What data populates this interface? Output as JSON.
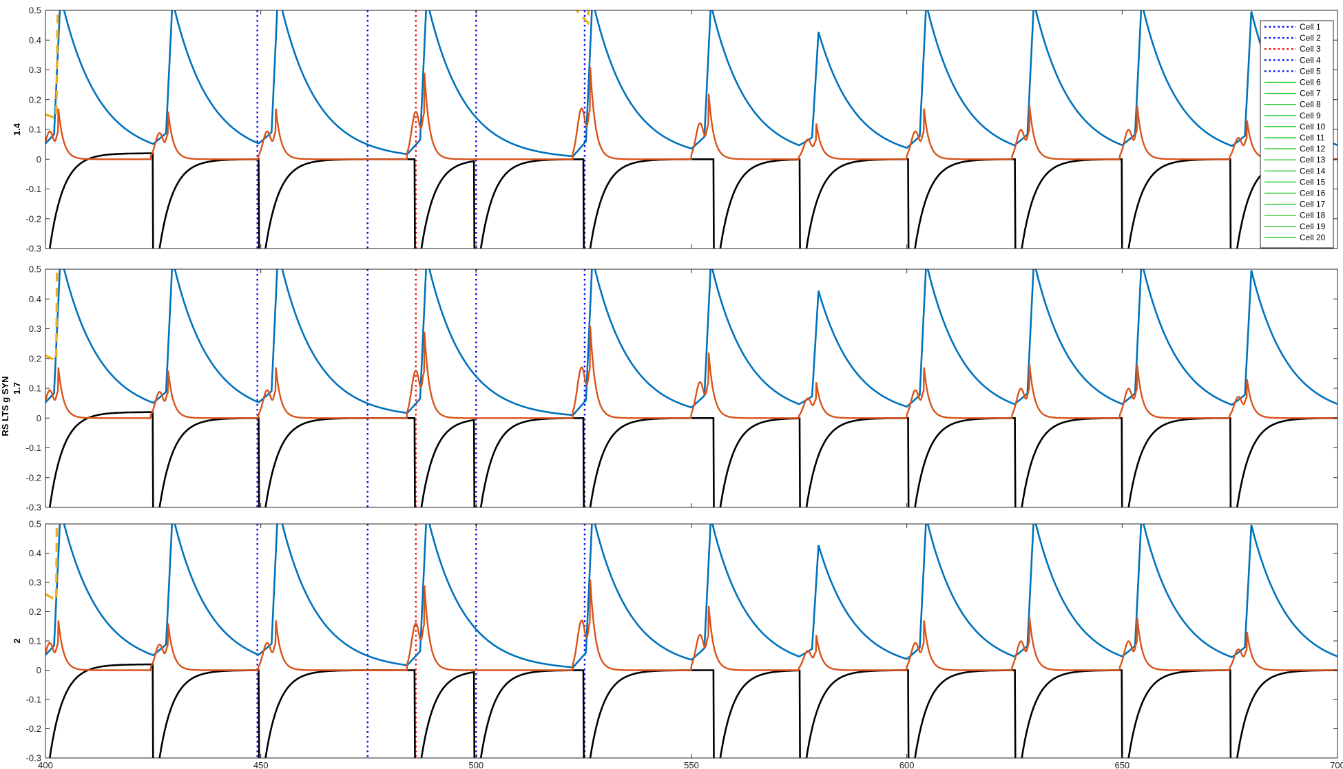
{
  "figure": {
    "ylabel_main": "RS LTS g SYN",
    "panel_labels": [
      "1.4",
      "1.7",
      "2"
    ]
  },
  "legend": {
    "placement": "top-right",
    "entries": [
      {
        "label": "Cell 1",
        "color": "#0000ff",
        "style": "dotted"
      },
      {
        "label": "Cell 2",
        "color": "#0000ff",
        "style": "dotted"
      },
      {
        "label": "Cell 3",
        "color": "#ff0000",
        "style": "dotted"
      },
      {
        "label": "Cell 4",
        "color": "#0000ff",
        "style": "dotted"
      },
      {
        "label": "Cell 5",
        "color": "#0000ff",
        "style": "dotted"
      },
      {
        "label": "Cell 6",
        "color": "#00c000",
        "style": "solid"
      },
      {
        "label": "Cell 7",
        "color": "#00c000",
        "style": "solid"
      },
      {
        "label": "Cell 8",
        "color": "#00c000",
        "style": "solid"
      },
      {
        "label": "Cell 9",
        "color": "#00c000",
        "style": "solid"
      },
      {
        "label": "Cell 10",
        "color": "#00c000",
        "style": "solid"
      },
      {
        "label": "Cell 11",
        "color": "#00c000",
        "style": "solid"
      },
      {
        "label": "Cell 12",
        "color": "#00c000",
        "style": "solid"
      },
      {
        "label": "Cell 13",
        "color": "#00c000",
        "style": "solid"
      },
      {
        "label": "Cell 14",
        "color": "#00c000",
        "style": "solid"
      },
      {
        "label": "Cell 15",
        "color": "#00c000",
        "style": "solid"
      },
      {
        "label": "Cell 16",
        "color": "#00c000",
        "style": "solid"
      },
      {
        "label": "Cell 17",
        "color": "#00c000",
        "style": "solid"
      },
      {
        "label": "Cell 18",
        "color": "#00c000",
        "style": "solid"
      },
      {
        "label": "Cell 19",
        "color": "#00c000",
        "style": "solid"
      },
      {
        "label": "Cell 20",
        "color": "#00c000",
        "style": "solid"
      }
    ]
  },
  "chart_data": {
    "type": "line",
    "panels": 3,
    "xlim": [
      400,
      700
    ],
    "ylim": [
      -0.3,
      0.5
    ],
    "xticks": [
      400,
      450,
      500,
      550,
      600,
      650,
      700
    ],
    "yticks": [
      -0.3,
      -0.2,
      -0.1,
      0,
      0.1,
      0.2,
      0.3,
      0.4,
      0.5
    ],
    "grid": false,
    "colors": {
      "blue_trace": "#0072bd",
      "orange_trace": "#d95319",
      "yellow_dashed": "#edb120",
      "black_trace": "#000000",
      "blue_dotted": "#0000ff",
      "red_dotted": "#ff0000"
    },
    "cell_spike_times": [
      {
        "cell": "Cell 1",
        "color": "#0000ff",
        "x": [
          449.2
        ]
      },
      {
        "cell": "Cell 2",
        "color": "#0000ff",
        "x": [
          474.8
        ]
      },
      {
        "cell": "Cell 3",
        "color": "#ff0000",
        "x": [
          486.0
        ]
      },
      {
        "cell": "Cell 4",
        "color": "#0000ff",
        "x": [
          500.0
        ]
      },
      {
        "cell": "Cell 5",
        "color": "#0000ff",
        "x": [
          525.2
        ]
      }
    ],
    "black_trace_reset_times": [
      425.0,
      449.6,
      485.8,
      499.6,
      525.0,
      555.2,
      575.2,
      600.4,
      625.2,
      650.0,
      675.2
    ],
    "blue_trace_peaks": [
      {
        "x": 403.5,
        "y": 0.52
      },
      {
        "x": 429.5,
        "y": 0.5
      },
      {
        "x": 454.0,
        "y": 0.53
      },
      {
        "x": 488.5,
        "y": 0.53
      },
      {
        "x": 527.0,
        "y": 0.53
      },
      {
        "x": 554.5,
        "y": 0.5
      },
      {
        "x": 579.5,
        "y": 0.4
      },
      {
        "x": 604.5,
        "y": 0.5
      },
      {
        "x": 629.5,
        "y": 0.5
      },
      {
        "x": 654.5,
        "y": 0.5
      },
      {
        "x": 680.0,
        "y": 0.47
      }
    ],
    "orange_trace_peaks": [
      {
        "x": 403.0,
        "y": 0.17
      },
      {
        "x": 428.5,
        "y": 0.16
      },
      {
        "x": 453.5,
        "y": 0.17
      },
      {
        "x": 488.0,
        "y": 0.29
      },
      {
        "x": 526.5,
        "y": 0.31
      },
      {
        "x": 554.0,
        "y": 0.22
      },
      {
        "x": 579.0,
        "y": 0.12
      },
      {
        "x": 604.0,
        "y": 0.17
      },
      {
        "x": 628.5,
        "y": 0.18
      },
      {
        "x": 653.5,
        "y": 0.18
      },
      {
        "x": 679.0,
        "y": 0.13
      }
    ],
    "yellow_trace_start": [
      0.15,
      0.21,
      0.26
    ]
  }
}
